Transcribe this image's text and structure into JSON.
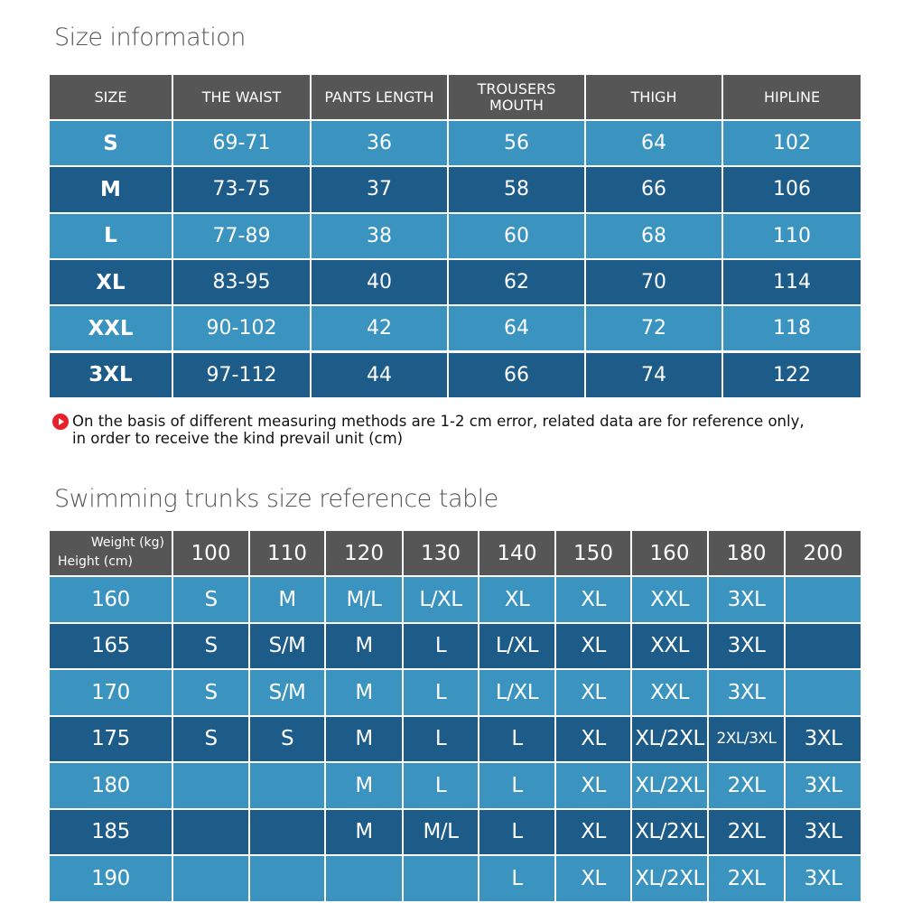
{
  "size_info": {
    "title": "Size information",
    "columns": [
      "SIZE",
      "THE WAIST",
      "PANTS LENGTH",
      "TROUSERS MOUTH",
      "THIGH",
      "HIPLINE"
    ],
    "rows": [
      [
        "S",
        "69-71",
        36,
        56,
        64,
        102
      ],
      [
        "M",
        "73-75",
        37,
        58,
        66,
        106
      ],
      [
        "L",
        "77-89",
        38,
        60,
        68,
        110
      ],
      [
        "XL",
        "83-95",
        40,
        62,
        70,
        114
      ],
      [
        "XXL",
        "90-102",
        42,
        64,
        72,
        118
      ],
      [
        "3XL",
        "97-112",
        44,
        66,
        74,
        122
      ]
    ],
    "note": "On the basis of different measuring methods are 1-2 cm error, related data are for reference only, in order to receive the kind prevail unit (cm)"
  },
  "swim_table": {
    "title": "Swimming trunks size reference table",
    "weight_label": "Weight (kg)",
    "height_label": "Height (cm)",
    "weights": [
      100,
      110,
      120,
      130,
      140,
      150,
      160,
      180,
      200
    ],
    "rows": [
      {
        "height": 160,
        "sizes": [
          "S",
          "M",
          "M/L",
          "L/XL",
          "XL",
          "XL",
          "XXL",
          "3XL",
          null
        ]
      },
      {
        "height": 165,
        "sizes": [
          "S",
          "S/M",
          "M",
          "L",
          "L/XL",
          "XL",
          "XXL",
          "3XL",
          null
        ]
      },
      {
        "height": 170,
        "sizes": [
          "S",
          "S/M",
          "M",
          "L",
          "L/XL",
          "XL",
          "XXL",
          "3XL",
          null
        ]
      },
      {
        "height": 175,
        "sizes": [
          "S",
          "S",
          "M",
          "L",
          "L",
          "XL",
          "XL/2XL",
          "2XL/3XL",
          "3XL"
        ]
      },
      {
        "height": 180,
        "sizes": [
          null,
          null,
          "M",
          "L",
          "L",
          "XL",
          "XL/2XL",
          "2XL",
          "3XL"
        ]
      },
      {
        "height": 185,
        "sizes": [
          null,
          null,
          "M",
          "M/L",
          "L",
          "XL",
          "XL/2XL",
          "2XL",
          "3XL"
        ]
      },
      {
        "height": 190,
        "sizes": [
          null,
          null,
          null,
          null,
          "L",
          "XL",
          "XL/2XL",
          "2XL",
          "3XL"
        ]
      }
    ]
  }
}
